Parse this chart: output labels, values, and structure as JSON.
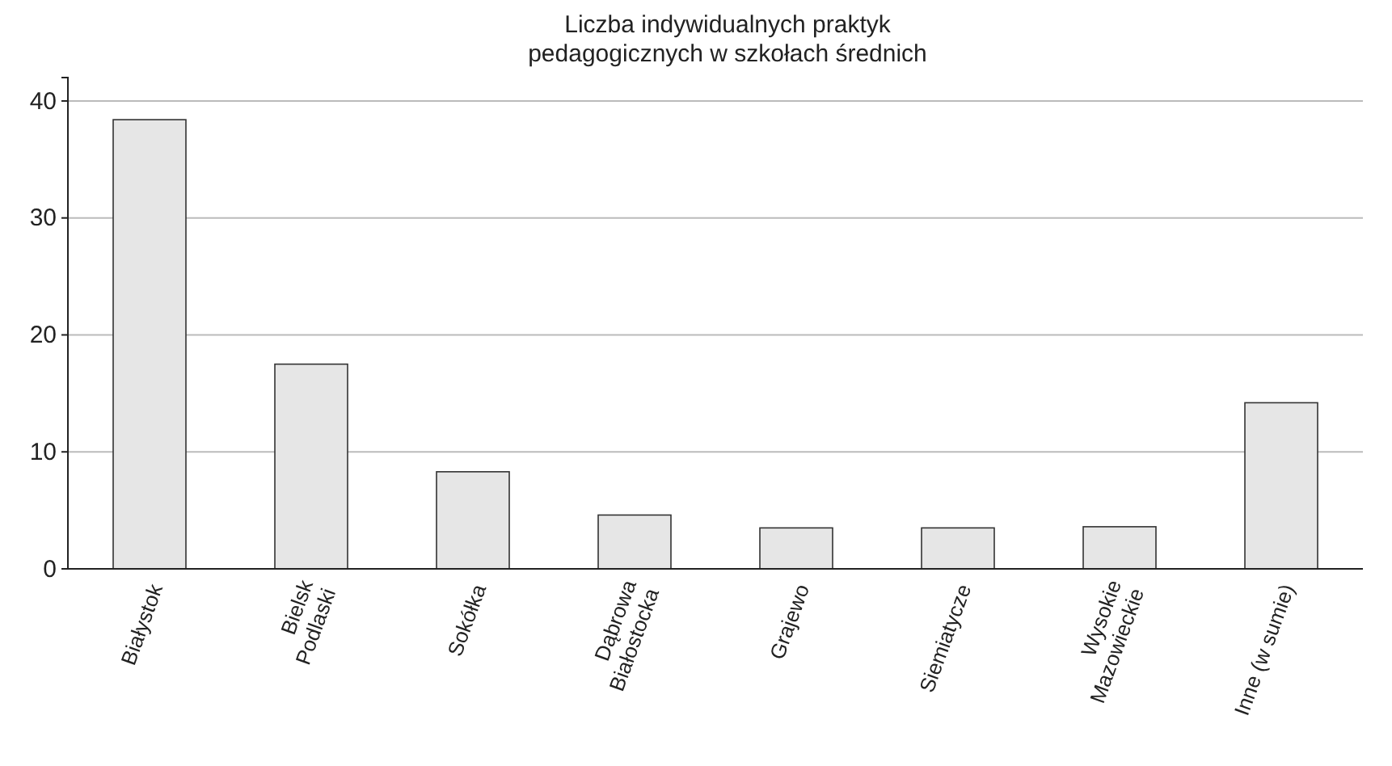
{
  "chart_data": {
    "type": "bar",
    "title": "Liczba indywidualnych praktyk\npedagogicznych w szkołach średnich",
    "categories": [
      "Białystok",
      "Bielsk\nPodlaski",
      "Sokółka",
      "Dąbrowa\nBiałostocka",
      "Grajewo",
      "Siemiatycze",
      "Wysokie\nMazowieckie",
      "Inne (w sumie)"
    ],
    "values": [
      38.4,
      17.5,
      8.3,
      4.6,
      3.5,
      3.5,
      3.6,
      14.2
    ],
    "color": "#e6e6e6",
    "ylim": [
      0,
      42
    ],
    "yticks": [
      0,
      10,
      20,
      30,
      40
    ],
    "grid": "y"
  }
}
